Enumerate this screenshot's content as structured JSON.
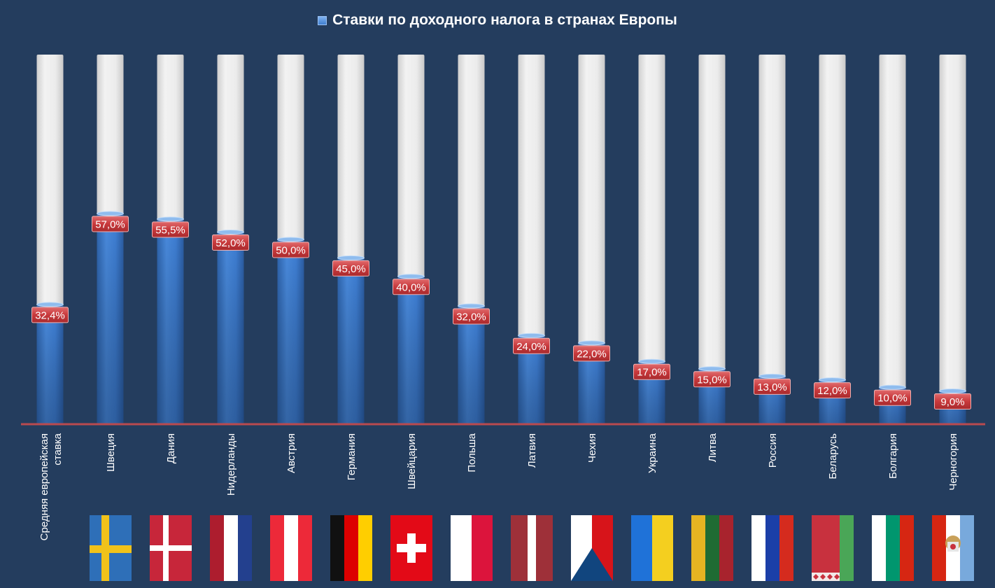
{
  "chart_data": {
    "type": "bar",
    "title": "Ставки по доходного налога в странах Европы",
    "legend": {
      "placement": "top",
      "entry_icon": "blue-square"
    },
    "categories": [
      "Средняя европейская ставка",
      "Швеция",
      "Дания",
      "Нидерланды",
      "Австрия",
      "Германия",
      "Швейцария",
      "Польша",
      "Латвия",
      "Чехия",
      "Украина",
      "Литва",
      "Россия",
      "Беларусь",
      "Болгария",
      "Черногория"
    ],
    "category_lines": [
      [
        "Средняя европейская",
        "ставка"
      ],
      [
        "Швеция"
      ],
      [
        "Дания"
      ],
      [
        "Нидерланды"
      ],
      [
        "Австрия"
      ],
      [
        "Германия"
      ],
      [
        "Швейцария"
      ],
      [
        "Польша"
      ],
      [
        "Латвия"
      ],
      [
        "Чехия"
      ],
      [
        "Украина"
      ],
      [
        "Литва"
      ],
      [
        "Россия"
      ],
      [
        "Беларусь"
      ],
      [
        "Болгария"
      ],
      [
        "Черногория"
      ]
    ],
    "values": [
      32.4,
      57.0,
      55.5,
      52.0,
      50.0,
      45.0,
      40.0,
      32.0,
      24.0,
      22.0,
      17.0,
      15.0,
      13.0,
      12.0,
      10.0,
      9.0
    ],
    "data_labels": [
      "32,4%",
      "57,0%",
      "55,5%",
      "52,0%",
      "50,0%",
      "45,0%",
      "40,0%",
      "32,0%",
      "24,0%",
      "22,0%",
      "17,0%",
      "15,0%",
      "13,0%",
      "12,0%",
      "10,0%",
      "9,0%"
    ],
    "ylim": [
      0,
      100
    ],
    "xlabel": "",
    "ylabel": "",
    "grid": false,
    "colors": {
      "bar": "#3d7dd3",
      "track": "#e6e6e6",
      "label_bg": "#c0393c",
      "axis": "#b94a4f"
    },
    "flags": [
      "sweden",
      "denmark",
      "netherlands",
      "austria",
      "germany",
      "switzerland",
      "poland",
      "latvia",
      "czechia",
      "ukraine",
      "lithuania",
      "russia",
      "belarus",
      "bulgaria",
      "montenegro"
    ]
  }
}
